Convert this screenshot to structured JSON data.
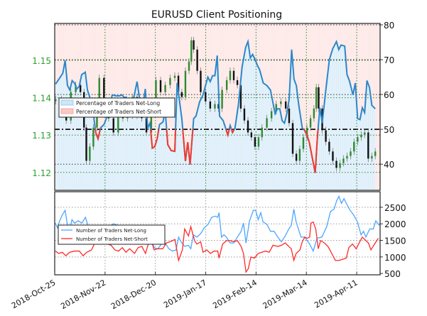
{
  "chart_data": [
    {
      "type": "line",
      "title": "EURUSD Client Positioning",
      "x_unit": "days since 2018-10-25",
      "xlim": [
        0,
        181
      ],
      "x_ticks": [
        {
          "day": 0,
          "label": "2018-Oct-25"
        },
        {
          "day": 28,
          "label": "2018-Nov-22"
        },
        {
          "day": 56,
          "label": "2018-Dec-20"
        },
        {
          "day": 84,
          "label": "2019-Jan-17"
        },
        {
          "day": 112,
          "label": "2019-Feb-14"
        },
        {
          "day": 140,
          "label": "2019-Mar-14"
        },
        {
          "day": 168,
          "label": "2019-Apr-11"
        }
      ],
      "price_axis": {
        "ylim": [
          1.1152,
          1.1599
        ],
        "ticks": [
          "1.12",
          "1.13",
          "1.14",
          "1.15"
        ],
        "tick_values": [
          1.12,
          1.13,
          1.14,
          1.15
        ],
        "color": "#2ca02c"
      },
      "pct_axis": {
        "ylim": [
          32.5,
          80.4
        ],
        "ticks": [
          "40",
          "50",
          "60",
          "70",
          "80"
        ],
        "tick_values": [
          40,
          50,
          60,
          70,
          80
        ]
      },
      "legend": {
        "placement": "center-left",
        "entries": [
          "Percentage of Traders Net-Long",
          "Percentage of Traders Net-Short"
        ]
      },
      "colors": {
        "long": "#2e86c8",
        "short": "#f03c32",
        "long_fill": "#ddeefa",
        "short_fill": "#fde9e7",
        "up_candle": "#2e8b2e",
        "down_candle": "#111111"
      },
      "price_close": {
        "day": [
          0.5,
          3.8,
          6.4,
          9.0,
          11.7,
          14.3,
          16.3,
          17.6,
          19.5,
          21.5,
          23.5,
          24.8,
          27.4,
          30.0,
          32.7,
          35.3,
          37.9,
          40.5,
          43.2,
          45.8,
          48.4,
          51.0,
          53.7,
          56.3,
          58.9,
          61.5,
          64.2,
          66.8,
          68.8,
          70.7,
          72.7,
          74.7,
          76.0,
          77.3,
          79.3,
          81.2,
          83.9,
          86.5,
          89.1,
          91.1,
          93.1,
          95.7,
          97.6,
          99.6,
          101.6,
          103.5,
          105.5,
          107.5,
          109.4,
          111.4,
          113.4,
          115.3,
          118.0,
          120.6,
          123.2,
          125.8,
          128.5,
          130.4,
          132.4,
          134.4,
          136.3,
          138.3,
          140.3,
          142.3,
          144.2,
          145.5,
          146.8,
          148.8,
          150.8,
          152.7,
          154.7,
          156.7,
          158.7,
          160.6,
          162.6,
          164.6,
          166.5,
          168.5,
          170.5,
          172.4,
          174.4,
          176.4,
          178.3
        ],
        "values": [
          1.1396,
          1.1383,
          1.1339,
          1.1415,
          1.1434,
          1.1415,
          1.132,
          1.1231,
          1.1269,
          1.132,
          1.1358,
          1.1453,
          1.1358,
          1.1345,
          1.1307,
          1.1371,
          1.1345,
          1.1352,
          1.1402,
          1.1352,
          1.1345,
          1.1307,
          1.1383,
          1.1447,
          1.1415,
          1.1434,
          1.1453,
          1.1459,
          1.1415,
          1.1402,
          1.1472,
          1.1497,
          1.1554,
          1.1529,
          1.1472,
          1.1415,
          1.139,
          1.1371,
          1.1383,
          1.1371,
          1.1421,
          1.1447,
          1.1472,
          1.1447,
          1.1434,
          1.1371,
          1.1339,
          1.1307,
          1.1294,
          1.1269,
          1.1294,
          1.132,
          1.1345,
          1.1364,
          1.1383,
          1.139,
          1.1371,
          1.1332,
          1.125,
          1.1231,
          1.1263,
          1.1294,
          1.132,
          1.1345,
          1.1371,
          1.1428,
          1.1371,
          1.1313,
          1.1282,
          1.1256,
          1.1231,
          1.1212,
          1.1225,
          1.1237,
          1.1244,
          1.1256,
          1.1282,
          1.1294,
          1.1301,
          1.1307,
          1.1237,
          1.1244,
          1.1256
        ]
      },
      "pct_net_long": {
        "day": [
          0.5,
          3.1,
          4.5,
          5.8,
          7.1,
          8.4,
          9.7,
          11.0,
          12.3,
          13.6,
          15.0,
          17.0,
          18.2,
          19.5,
          21.5,
          22.8,
          24.1,
          25.5,
          27.4,
          28.7,
          30.0,
          32.0,
          34.0,
          36.0,
          37.3,
          38.6,
          39.9,
          41.9,
          43.8,
          45.8,
          47.1,
          48.4,
          50.4,
          51.7,
          53.0,
          54.3,
          55.6,
          57.0,
          58.3,
          60.2,
          61.5,
          62.9,
          64.8,
          66.8,
          68.1,
          70.7,
          72.7,
          74.0,
          75.3,
          77.3,
          78.6,
          80.6,
          82.5,
          83.9,
          85.2,
          86.5,
          87.8,
          89.1,
          90.4,
          91.7,
          93.7,
          96.3,
          97.6,
          98.9,
          100.3,
          102.2,
          104.2,
          106.2,
          107.5,
          108.8,
          110.1,
          111.4,
          112.7,
          114.0,
          116.0,
          118.0,
          120.0,
          122.6,
          123.9,
          125.2,
          126.5,
          127.8,
          129.1,
          130.4,
          131.8,
          133.1,
          134.4,
          135.7,
          137.7,
          139.0,
          140.3,
          141.6,
          144.9,
          146.2,
          147.5,
          148.8,
          150.8,
          152.8,
          154.7,
          156.7,
          158.0,
          159.3,
          161.3,
          162.6,
          163.9,
          165.9,
          167.2,
          168.5,
          169.8,
          171.1,
          172.4,
          173.7,
          175.1,
          176.4,
          178.3
        ],
        "values": [
          63.0,
          65.0,
          66.1,
          69.8,
          62.6,
          61.3,
          64.0,
          63.3,
          61.6,
          62.3,
          65.7,
          66.4,
          61.3,
          59.2,
          54.5,
          49.1,
          47.3,
          50.4,
          51.4,
          53.1,
          55.2,
          59.9,
          59.6,
          59.6,
          59.9,
          59.2,
          59.2,
          55.2,
          58.6,
          63.7,
          59.2,
          54.5,
          61.6,
          50.4,
          51.8,
          44.6,
          45.0,
          47.3,
          51.4,
          52.1,
          55.2,
          45.6,
          43.9,
          43.7,
          63.3,
          53.1,
          40.9,
          46.3,
          39.9,
          53.1,
          53.8,
          57.9,
          59.9,
          62.6,
          65.0,
          63.7,
          65.4,
          65.4,
          71.2,
          53.8,
          52.5,
          48.4,
          51.1,
          49.1,
          50.4,
          57.2,
          67.8,
          73.5,
          75.2,
          70.5,
          71.5,
          70.1,
          68.4,
          67.1,
          63.3,
          62.6,
          61.3,
          54.5,
          55.9,
          55.9,
          52.5,
          51.8,
          54.5,
          58.6,
          72.9,
          64.4,
          62.6,
          57.2,
          50.4,
          49.7,
          48.4,
          46.3,
          37.5,
          48.4,
          56.2,
          51.8,
          61.3,
          70.1,
          73.2,
          75.2,
          72.9,
          74.2,
          73.9,
          65.7,
          64.0,
          59.9,
          63.3,
          53.1,
          52.8,
          56.2,
          54.8,
          64.0,
          62.0,
          56.9,
          55.9
        ]
      }
    },
    {
      "type": "line",
      "xlim": [
        0,
        181
      ],
      "ylim": [
        460,
        2970
      ],
      "y_ticks": [
        "500",
        "1000",
        "1500",
        "2000",
        "2500"
      ],
      "y_tick_values": [
        500,
        1000,
        1500,
        2000,
        2500
      ],
      "legend": {
        "placement": "center-left",
        "entries": [
          "Number of Traders Net-Long",
          "Number of Traders Net-Short"
        ]
      },
      "colors": {
        "long": "#4da6ff",
        "short": "#ff2a2a"
      },
      "series": [
        {
          "name": "Number of Traders Net-Long",
          "day": [
            0.4,
            1.5,
            2.8,
            4.2,
            5.8,
            6.9,
            8.3,
            9.6,
            11.0,
            13.1,
            15.1,
            17.1,
            18.5,
            20.5,
            22.6,
            27.4,
            32.8,
            38.3,
            45.1,
            50.5,
            53.2,
            55.3,
            57.3,
            59.4,
            61.4,
            63.5,
            65.5,
            67.5,
            68.9,
            70.3,
            72.3,
            74.4,
            75.7,
            77.1,
            79.1,
            81.2,
            83.2,
            85.3,
            87.3,
            89.4,
            90.7,
            91.4,
            92.8,
            94.1,
            95.5,
            97.5,
            99.6,
            101.6,
            103.7,
            105.0,
            106.4,
            108.4,
            110.5,
            111.8,
            113.2,
            114.6,
            115.9,
            118.0,
            120.0,
            122.0,
            124.1,
            126.1,
            128.2,
            130.2,
            131.6,
            133.0,
            134.3,
            137.0,
            139.1,
            141.8,
            143.8,
            145.9,
            148.6,
            151.3,
            153.4,
            155.4,
            156.8,
            158.1,
            159.5,
            160.9,
            162.9,
            164.3,
            166.3,
            168.4,
            170.4,
            171.8,
            173.1,
            175.2,
            177.2,
            178.6,
            180.6
          ],
          "values": [
            2021,
            1880,
            2092,
            2268,
            2408,
            2021,
            1810,
            2127,
            2021,
            2092,
            2021,
            2197,
            1951,
            1845,
            1950,
            1850,
            2000,
            1900,
            1850,
            1700,
            1599,
            1282,
            1247,
            1388,
            1423,
            1247,
            1177,
            1212,
            1599,
            1458,
            1317,
            1352,
            1247,
            1669,
            1599,
            1704,
            1880,
            1986,
            2197,
            2232,
            2197,
            2338,
            1599,
            1669,
            1599,
            1423,
            1423,
            1599,
            1775,
            2021,
            1423,
            2092,
            2408,
            2408,
            2127,
            2338,
            2056,
            1986,
            1775,
            1775,
            1599,
            1458,
            1634,
            1845,
            1951,
            2444,
            2056,
            1599,
            1599,
            1388,
            1177,
            1564,
            1599,
            1916,
            2373,
            2444,
            2690,
            2831,
            2620,
            2760,
            2549,
            2408,
            2268,
            2056,
            1669,
            1775,
            1599,
            1845,
            1845,
            2092,
            1951
          ]
        },
        {
          "name": "Number of Traders Net-Short",
          "day": [
            0.4,
            2.2,
            4.2,
            6.2,
            8.3,
            11.0,
            13.7,
            15.8,
            17.8,
            20.5,
            22.6,
            24.6,
            27.4,
            29.4,
            31.4,
            33.5,
            35.5,
            37.6,
            39.6,
            41.7,
            44.4,
            46.4,
            48.5,
            50.5,
            53.2,
            55.3,
            57.3,
            60.1,
            62.1,
            64.1,
            66.9,
            68.9,
            71.0,
            72.3,
            74.4,
            75.7,
            77.8,
            79.1,
            81.2,
            82.5,
            84.6,
            86.6,
            88.7,
            90.7,
            91.4,
            93.4,
            95.5,
            97.5,
            99.6,
            101.6,
            103.7,
            105.0,
            106.4,
            107.7,
            109.1,
            111.1,
            113.2,
            115.2,
            117.3,
            119.3,
            121.4,
            124.1,
            126.1,
            128.2,
            130.2,
            131.6,
            133.0,
            134.3,
            136.4,
            137.7,
            139.1,
            140.4,
            141.8,
            142.5,
            143.8,
            145.2,
            146.6,
            147.9,
            150.0,
            152.0,
            154.1,
            156.1,
            158.1,
            160.2,
            162.2,
            163.6,
            165.6,
            167.7,
            169.7,
            171.1,
            173.1,
            174.5,
            175.9,
            177.9,
            180.0
          ],
          "values": [
            1177,
            1106,
            1141,
            1036,
            1141,
            1177,
            1177,
            1036,
            1141,
            1212,
            1458,
            1669,
            1564,
            1388,
            1352,
            1212,
            1177,
            1282,
            1141,
            1247,
            1106,
            1282,
            1317,
            1106,
            1599,
            1212,
            1247,
            1247,
            1423,
            1458,
            1528,
            895,
            1212,
            1845,
            1634,
            1916,
            1493,
            1388,
            1458,
            1141,
            1212,
            1106,
            1177,
            1177,
            965,
            1388,
            1493,
            1493,
            1458,
            1493,
            1317,
            1106,
            543,
            649,
            1000,
            965,
            1106,
            1141,
            1177,
            1141,
            1352,
            1317,
            1352,
            1423,
            1317,
            1247,
            895,
            1106,
            1212,
            1458,
            1599,
            1564,
            1599,
            2021,
            2056,
            1845,
            1247,
            1493,
            1423,
            1317,
            1106,
            895,
            895,
            930,
            965,
            1282,
            1388,
            1247,
            1458,
            1599,
            1493,
            1423,
            1212,
            1388,
            1564
          ]
        }
      ]
    }
  ]
}
